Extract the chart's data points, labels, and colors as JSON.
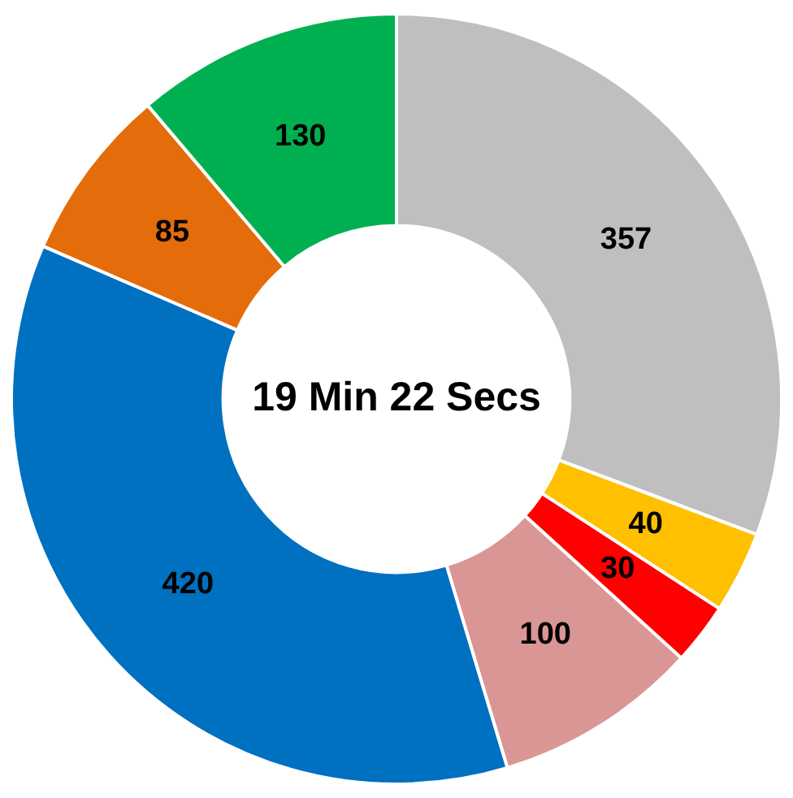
{
  "chart_data": {
    "type": "donut",
    "categories": [
      null,
      null,
      null,
      null,
      null,
      null,
      null
    ],
    "values": [
      357,
      40,
      30,
      100,
      420,
      85,
      130
    ],
    "colors": [
      "#bfbfbf",
      "#ffc000",
      "#ff0000",
      "#da9694",
      "#0070c0",
      "#e46c0a",
      "#00b050"
    ],
    "data_labels": true,
    "legend": false,
    "annotations": [
      "19 Min 22 Secs"
    ]
  }
}
